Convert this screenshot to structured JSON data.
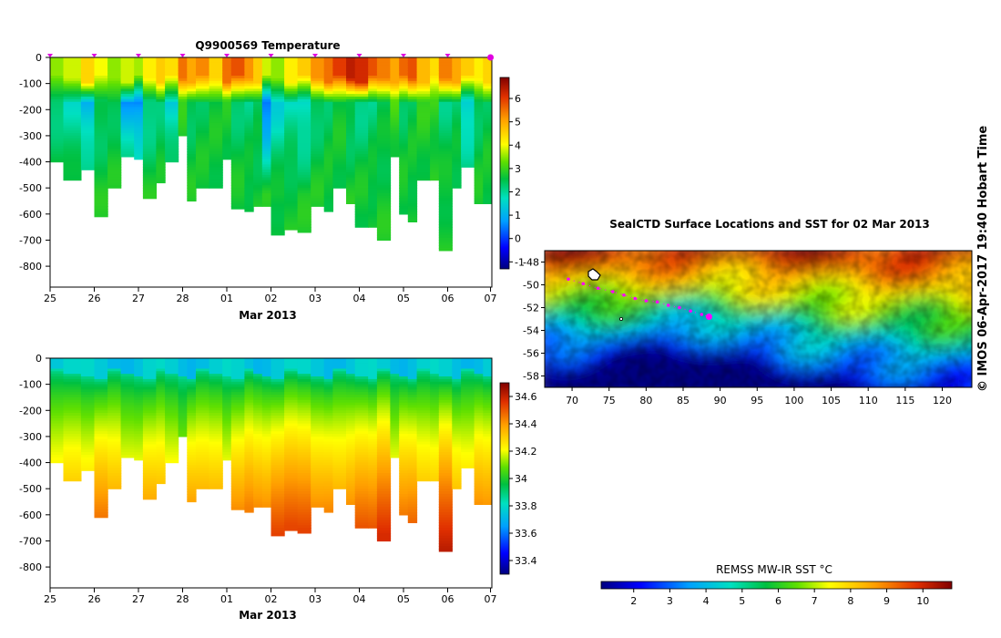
{
  "chart_data": [
    {
      "id": "temperature",
      "type": "heatmap",
      "title": "Q9900569  Temperature",
      "xlabel": "Mar 2013",
      "x_ticks": [
        "25",
        "26",
        "27",
        "28",
        "01",
        "02",
        "03",
        "04",
        "05",
        "06",
        "07"
      ],
      "y_ticks": [
        "0",
        "-100",
        "-200",
        "-300",
        "-400",
        "-500",
        "-600",
        "-700",
        "-800"
      ],
      "ylim": [
        -880,
        0
      ],
      "colorbar": {
        "min": -1.3,
        "max": 6.9,
        "ticks": [
          "-1",
          "0",
          "1",
          "2",
          "3",
          "4",
          "5",
          "6"
        ]
      },
      "profile_days": [
        0,
        1,
        2,
        3,
        4,
        5,
        6,
        7,
        8,
        9,
        9.97
      ],
      "profiles": [
        {
          "x": 0.0,
          "depth": 400,
          "surf": 3.5,
          "deep": 2.2
        },
        {
          "x": 0.3,
          "depth": 470,
          "surf": 3.8,
          "deep": 1.8
        },
        {
          "x": 0.7,
          "depth": 430,
          "surf": 4.5,
          "deep": 1.0
        },
        {
          "x": 1.0,
          "depth": 610,
          "surf": 4.0,
          "deep": 2.3
        },
        {
          "x": 1.3,
          "depth": 500,
          "surf": 3.5,
          "deep": 2.5
        },
        {
          "x": 1.6,
          "depth": 380,
          "surf": 3.8,
          "deep": 0.8
        },
        {
          "x": 1.9,
          "depth": 390,
          "surf": 3.6,
          "deep": 0.5
        },
        {
          "x": 2.1,
          "depth": 535,
          "surf": 4.2,
          "deep": 2.0
        },
        {
          "x": 2.4,
          "depth": 480,
          "surf": 4.6,
          "deep": 2.3
        },
        {
          "x": 2.6,
          "depth": 400,
          "surf": 4.4,
          "deep": 1.5
        },
        {
          "x": 2.9,
          "depth": 300,
          "surf": 5.5,
          "deep": 2.8
        },
        {
          "x": 3.1,
          "depth": 550,
          "surf": 5.0,
          "deep": 2.4
        },
        {
          "x": 3.3,
          "depth": 500,
          "surf": 5.3,
          "deep": 2.5
        },
        {
          "x": 3.6,
          "depth": 500,
          "surf": 4.5,
          "deep": 2.6
        },
        {
          "x": 3.9,
          "depth": 385,
          "surf": 5.5,
          "deep": 2.7
        },
        {
          "x": 4.1,
          "depth": 580,
          "surf": 5.8,
          "deep": 2.3
        },
        {
          "x": 4.4,
          "depth": 585,
          "surf": 5.2,
          "deep": 2.2
        },
        {
          "x": 4.6,
          "depth": 565,
          "surf": 4.6,
          "deep": 2.3
        },
        {
          "x": 4.8,
          "depth": 565,
          "surf": 3.8,
          "deep": 0.3
        },
        {
          "x": 5.0,
          "depth": 675,
          "surf": 3.5,
          "deep": 1.5
        },
        {
          "x": 5.3,
          "depth": 660,
          "surf": 4.2,
          "deep": 1.8
        },
        {
          "x": 5.6,
          "depth": 665,
          "surf": 4.6,
          "deep": 1.5
        },
        {
          "x": 5.9,
          "depth": 570,
          "surf": 5.2,
          "deep": 2.3
        },
        {
          "x": 6.2,
          "depth": 590,
          "surf": 5.5,
          "deep": 2.4
        },
        {
          "x": 6.4,
          "depth": 500,
          "surf": 6.0,
          "deep": 2.6
        },
        {
          "x": 6.7,
          "depth": 560,
          "surf": 6.4,
          "deep": 2.3
        },
        {
          "x": 6.9,
          "depth": 645,
          "surf": 6.2,
          "deep": 2.1
        },
        {
          "x": 7.2,
          "depth": 650,
          "surf": 5.8,
          "deep": 2.2
        },
        {
          "x": 7.4,
          "depth": 700,
          "surf": 5.4,
          "deep": 2.4
        },
        {
          "x": 7.7,
          "depth": 380,
          "surf": 5.0,
          "deep": 3.0
        },
        {
          "x": 7.9,
          "depth": 600,
          "surf": 5.6,
          "deep": 2.4
        },
        {
          "x": 8.1,
          "depth": 630,
          "surf": 5.8,
          "deep": 2.5
        },
        {
          "x": 8.3,
          "depth": 465,
          "surf": 4.8,
          "deep": 2.8
        },
        {
          "x": 8.6,
          "depth": 465,
          "surf": 4.4,
          "deep": 2.9
        },
        {
          "x": 8.8,
          "depth": 735,
          "surf": 5.4,
          "deep": 2.2
        },
        {
          "x": 9.1,
          "depth": 500,
          "surf": 5.0,
          "deep": 2.3
        },
        {
          "x": 9.3,
          "depth": 420,
          "surf": 4.6,
          "deep": 1.3
        },
        {
          "x": 9.6,
          "depth": 560,
          "surf": 4.2,
          "deep": 2.4
        },
        {
          "x": 9.8,
          "depth": 560,
          "surf": 4.5,
          "deep": 2.5
        }
      ]
    },
    {
      "id": "salinity",
      "type": "heatmap",
      "title": "",
      "xlabel": "Mar 2013",
      "x_ticks": [
        "25",
        "26",
        "27",
        "28",
        "01",
        "02",
        "03",
        "04",
        "05",
        "06",
        "07"
      ],
      "y_ticks": [
        "0",
        "-100",
        "-200",
        "-300",
        "-400",
        "-500",
        "-600",
        "-700",
        "-800"
      ],
      "ylim": [
        -880,
        0
      ],
      "colorbar": {
        "min": 33.3,
        "max": 34.7,
        "ticks": [
          "33.4",
          "33.6",
          "33.8",
          "34",
          "34.2",
          "34.4",
          "34.6"
        ]
      },
      "profiles_ref": "temperature",
      "surface_value": 33.75,
      "deep_range": [
        34.2,
        34.62
      ]
    },
    {
      "id": "sst_map",
      "type": "heatmap",
      "title": "SealCTD Surface Locations and SST for 02 Mar 2013",
      "x_ticks": [
        "70",
        "75",
        "80",
        "85",
        "90",
        "95",
        "100",
        "105",
        "110",
        "115",
        "120"
      ],
      "y_ticks": [
        "-48",
        "-50",
        "-52",
        "-54",
        "-56",
        "-58"
      ],
      "xlim": [
        66.3,
        124
      ],
      "ylim": [
        -59,
        -47
      ],
      "colorbar": {
        "label": "REMSS MW-IR SST °C",
        "min": 1.1,
        "max": 10.8,
        "ticks": [
          "2",
          "3",
          "4",
          "5",
          "6",
          "7",
          "8",
          "9",
          "10"
        ]
      },
      "track": [
        {
          "lon": 69.5,
          "lat": -49.5
        },
        {
          "lon": 71.5,
          "lat": -49.9
        },
        {
          "lon": 73.5,
          "lat": -50.3
        },
        {
          "lon": 75.5,
          "lat": -50.6
        },
        {
          "lon": 77.0,
          "lat": -50.9
        },
        {
          "lon": 78.5,
          "lat": -51.2
        },
        {
          "lon": 80.0,
          "lat": -51.4
        },
        {
          "lon": 81.5,
          "lat": -51.5
        },
        {
          "lon": 83.0,
          "lat": -51.8
        },
        {
          "lon": 84.5,
          "lat": -52.0
        },
        {
          "lon": 86.0,
          "lat": -52.3
        },
        {
          "lon": 87.5,
          "lat": -52.6
        },
        {
          "lon": 88.5,
          "lat": -52.8
        }
      ]
    }
  ],
  "side_label": "©  IMOS 06-Apr-2017 19:40 Hobart Time",
  "colors": {
    "marker": "#e000e0",
    "track": "#ff00ff"
  }
}
